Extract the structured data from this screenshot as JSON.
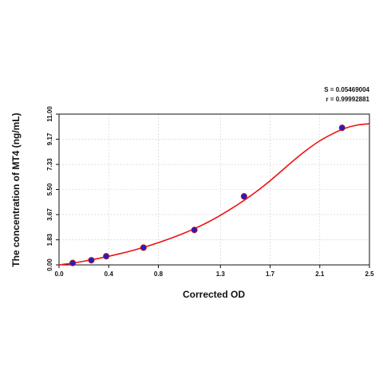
{
  "chart_data": {
    "type": "scatter",
    "title": "",
    "xlabel": "Corrected OD",
    "ylabel": "The concentration of MT4 (ng/mL)",
    "xlim": [
      0.0,
      2.5
    ],
    "ylim": [
      0.0,
      11.0
    ],
    "x_ticks": [
      "0.0",
      "0.4",
      "0.8",
      "1.3",
      "1.7",
      "2.1",
      "2.5"
    ],
    "y_ticks": [
      "0.00",
      "1.83",
      "3.67",
      "5.50",
      "7.33",
      "9.17",
      "11.00"
    ],
    "grid": true,
    "stats": {
      "s_text": "S = 0.05469004",
      "r_text": "r = 0.99992881"
    },
    "series": [
      {
        "kind": "points",
        "x": [
          0.11,
          0.26,
          0.38,
          0.68,
          1.09,
          1.49,
          2.28
        ],
        "y": [
          0.14,
          0.34,
          0.63,
          1.26,
          2.55,
          5.0,
          10.0
        ]
      },
      {
        "kind": "fit-curve",
        "x": [
          0.0,
          0.1,
          0.2,
          0.3,
          0.4,
          0.5,
          0.6,
          0.7,
          0.8,
          0.9,
          1.0,
          1.1,
          1.2,
          1.3,
          1.4,
          1.5,
          1.6,
          1.7,
          1.8,
          1.9,
          2.0,
          2.1,
          2.2,
          2.3,
          2.4,
          2.5
        ],
        "y": [
          0.0,
          0.12,
          0.27,
          0.44,
          0.63,
          0.84,
          1.07,
          1.33,
          1.62,
          1.94,
          2.29,
          2.68,
          3.12,
          3.62,
          4.17,
          4.77,
          5.42,
          6.14,
          6.92,
          7.7,
          8.42,
          9.05,
          9.55,
          9.95,
          10.2,
          10.3
        ]
      }
    ],
    "colors": {
      "curve": "#ee1111",
      "marker_fill": "#1e1ec8",
      "marker_edge": "#cc1111",
      "grid": "#cccccc",
      "axis": "#111111"
    }
  }
}
